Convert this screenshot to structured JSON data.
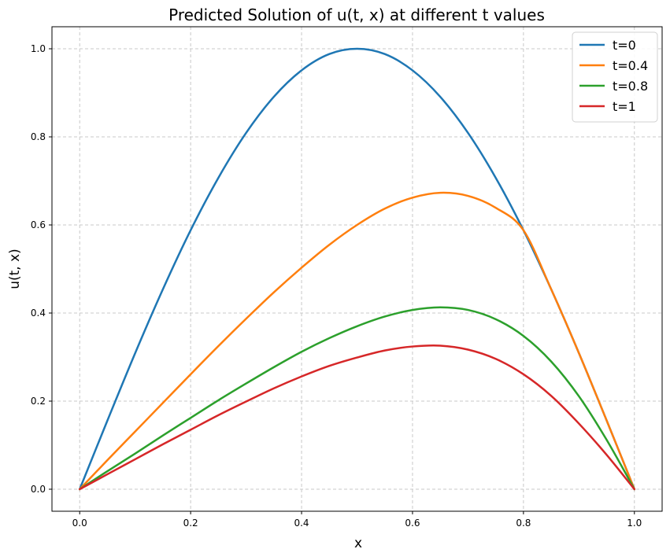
{
  "chart_data": {
    "type": "line",
    "title": "Predicted Solution of u(t, x) at different t values",
    "xlabel": "x",
    "ylabel": "u(t, x)",
    "xlim": [
      -0.05,
      1.05
    ],
    "ylim": [
      -0.05,
      1.05
    ],
    "xticks": [
      0.0,
      0.2,
      0.4,
      0.6,
      0.8,
      1.0
    ],
    "yticks": [
      0.0,
      0.2,
      0.4,
      0.6,
      0.8,
      1.0
    ],
    "xtick_labels": [
      "0.0",
      "0.2",
      "0.4",
      "0.6",
      "0.8",
      "1.0"
    ],
    "ytick_labels": [
      "0.0",
      "0.2",
      "0.4",
      "0.6",
      "0.8",
      "1.0"
    ],
    "grid": true,
    "legend_position": "top-right",
    "x": [
      0.0,
      0.05,
      0.1,
      0.15,
      0.2,
      0.25,
      0.3,
      0.35,
      0.4,
      0.45,
      0.5,
      0.55,
      0.6,
      0.65,
      0.7,
      0.75,
      0.8,
      0.85,
      0.9,
      0.95,
      1.0
    ],
    "series": [
      {
        "name": "t=0",
        "color": "#1f77b4",
        "values": [
          0.0,
          0.156,
          0.309,
          0.454,
          0.588,
          0.707,
          0.809,
          0.891,
          0.951,
          0.988,
          1.0,
          0.988,
          0.951,
          0.891,
          0.809,
          0.707,
          0.588,
          0.454,
          0.309,
          0.156,
          0.0
        ]
      },
      {
        "name": "t=0.4",
        "color": "#ff7f0e",
        "values": [
          0.0,
          0.066,
          0.131,
          0.196,
          0.261,
          0.325,
          0.387,
          0.447,
          0.503,
          0.555,
          0.6,
          0.637,
          0.662,
          0.673,
          0.666,
          0.639,
          0.588,
          0.454,
          0.309,
          0.156,
          0.0
        ]
      },
      {
        "name": "t=0.8",
        "color": "#2ca02c",
        "values": [
          0.0,
          0.041,
          0.081,
          0.122,
          0.162,
          0.202,
          0.24,
          0.277,
          0.312,
          0.343,
          0.37,
          0.392,
          0.407,
          0.413,
          0.407,
          0.386,
          0.348,
          0.29,
          0.211,
          0.112,
          0.0
        ]
      },
      {
        "name": "t=1",
        "color": "#d62728",
        "values": [
          0.0,
          0.034,
          0.068,
          0.102,
          0.135,
          0.168,
          0.199,
          0.229,
          0.256,
          0.28,
          0.299,
          0.315,
          0.324,
          0.326,
          0.317,
          0.296,
          0.261,
          0.212,
          0.149,
          0.078,
          0.0
        ]
      }
    ]
  }
}
